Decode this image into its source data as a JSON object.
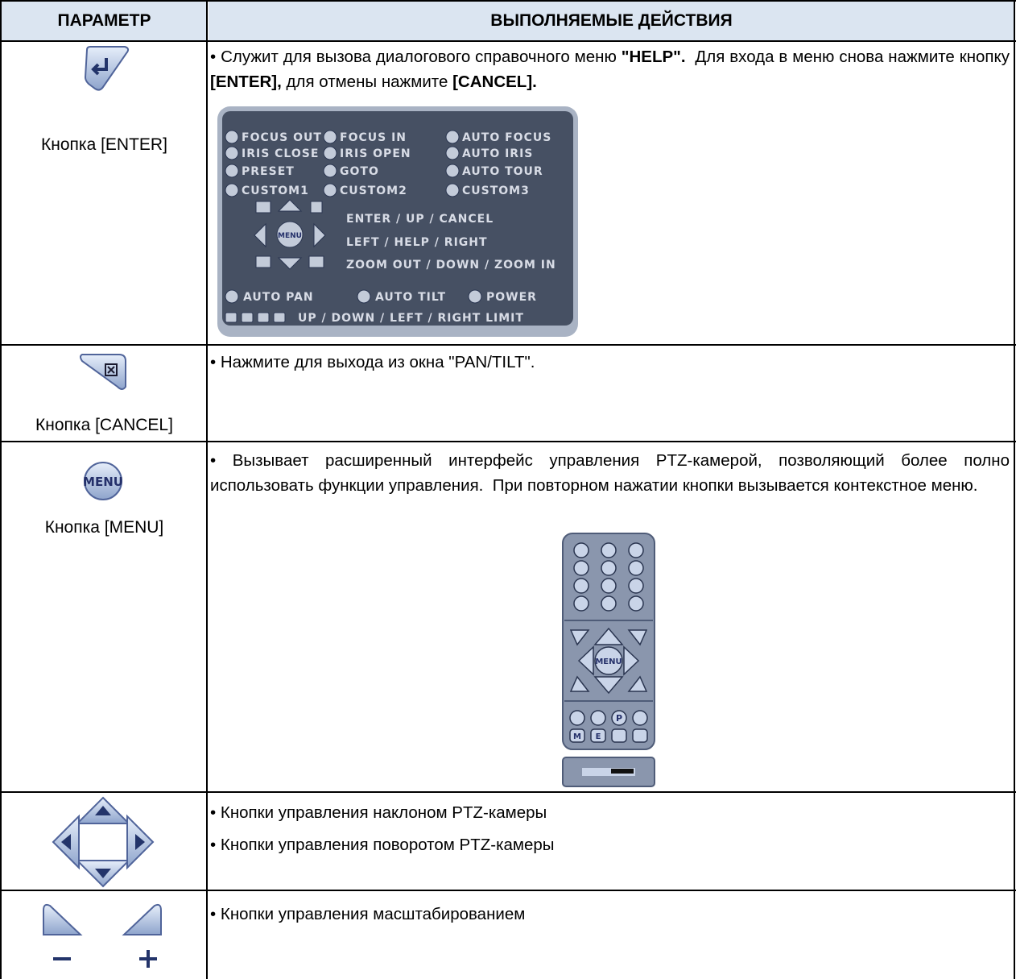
{
  "header": {
    "col1": "ПАРАМЕТР",
    "col2": "ВЫПОЛНЯЕМЫЕ ДЕЙСТВИЯ"
  },
  "rows": [
    {
      "label": "Кнопка [ENTER]",
      "description": [
        [
          {
            "text": "• Служит для вызова диалогового справочного меню "
          },
          {
            "text": "\"HELP\".",
            "bold": true
          },
          {
            "text": "  Для входа в меню снова нажмите кнопку "
          },
          {
            "text": "[ENTER],",
            "bold": true
          },
          {
            "text": " для отмены нажмите "
          },
          {
            "text": "[CANCEL].",
            "bold": true
          }
        ]
      ]
    },
    {
      "label": "Кнопка [CANCEL]",
      "description": [
        [
          {
            "text": "• Нажмите для выхода из окна \"PAN/TILT\"."
          }
        ]
      ]
    },
    {
      "label": "Кнопка [MENU]",
      "description": [
        [
          {
            "text": "• Вызывает расширенный интерфейс управления PTZ-камерой, позволяющий более полно использовать функции управления.  При повторном нажатии кнопки вызывается контекстное меню."
          }
        ]
      ]
    },
    {
      "description": [
        [
          {
            "text": "• Кнопки управления наклоном PTZ-камеры"
          }
        ],
        [
          {
            "text": "• Кнопки управления поворотом PTZ-камеры"
          }
        ]
      ]
    },
    {
      "description": [
        [
          {
            "text": "• Кнопки управления масштабированием"
          }
        ]
      ]
    }
  ],
  "help_panel": {
    "grid": [
      [
        "FOCUS OUT",
        "FOCUS IN",
        "AUTO FOCUS"
      ],
      [
        "IRIS CLOSE",
        "IRIS OPEN",
        "AUTO IRIS"
      ],
      [
        "PRESET",
        "GOTO",
        "AUTO TOUR"
      ],
      [
        "CUSTOM1",
        "CUSTOM2",
        "CUSTOM3"
      ]
    ],
    "nav": [
      "ENTER / UP / CANCEL",
      "LEFT / HELP / RIGHT",
      "ZOOM OUT / DOWN / ZOOM IN"
    ],
    "menu": "MENU",
    "bottom": [
      "AUTO PAN",
      "AUTO TILT",
      "POWER"
    ],
    "limit": "UP / DOWN / LEFT / RIGHT LIMIT"
  },
  "menu_icon": "MENU",
  "remote": {
    "menu": "MENU",
    "keys": [
      "P",
      "M",
      "E"
    ]
  }
}
